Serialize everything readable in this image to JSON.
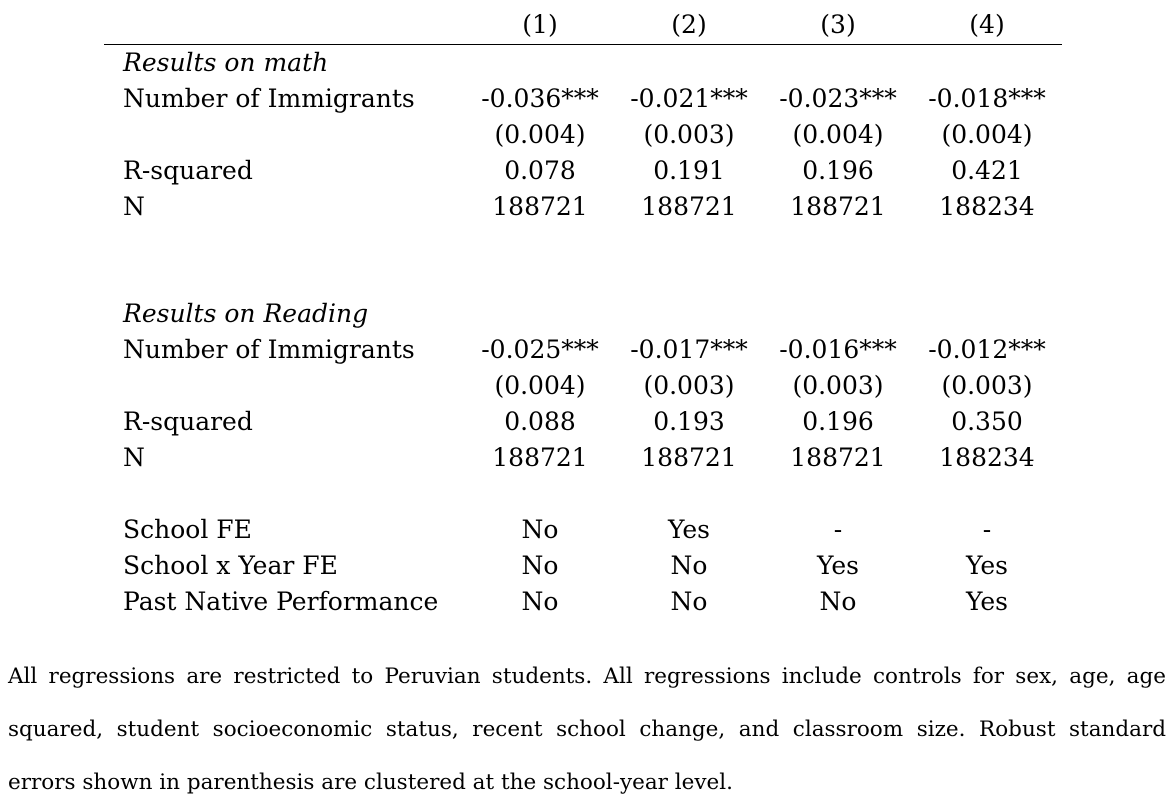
{
  "columns": [
    "(1)",
    "(2)",
    "(3)",
    "(4)"
  ],
  "math": {
    "section_label": "Results on math",
    "rows": [
      {
        "label": "Number of Immigrants",
        "values": [
          "-0.036***",
          "-0.021***",
          "-0.023***",
          "-0.018***"
        ]
      },
      {
        "label": "",
        "values": [
          "(0.004)",
          "(0.003)",
          "(0.004)",
          "(0.004)"
        ]
      },
      {
        "label": "R-squared",
        "values": [
          "0.078",
          "0.191",
          "0.196",
          "0.421"
        ]
      },
      {
        "label": "N",
        "values": [
          "188721",
          "188721",
          "188721",
          "188234"
        ]
      }
    ]
  },
  "reading": {
    "section_label": "Results on Reading",
    "rows": [
      {
        "label": "Number of Immigrants",
        "values": [
          "-0.025***",
          "-0.017***",
          "-0.016***",
          "-0.012***"
        ]
      },
      {
        "label": "",
        "values": [
          "(0.004)",
          "(0.003)",
          "(0.003)",
          "(0.003)"
        ]
      },
      {
        "label": "R-squared",
        "values": [
          "0.088",
          "0.193",
          "0.196",
          "0.350"
        ]
      },
      {
        "label": "N",
        "values": [
          "188721",
          "188721",
          "188721",
          "188234"
        ]
      }
    ]
  },
  "controls": [
    {
      "label": "School FE",
      "values": [
        "No",
        "Yes",
        "-",
        "-"
      ]
    },
    {
      "label": "School x Year FE",
      "values": [
        "No",
        "No",
        "Yes",
        "Yes"
      ]
    },
    {
      "label": "Past Native Performance",
      "values": [
        "No",
        "No",
        "No",
        "Yes"
      ]
    }
  ],
  "footnote": "All regressions are restricted to Peruvian students.  All regressions include controls for sex, age, age squared, student socioeconomic status, recent school change, and classroom size.  Robust standard errors shown in parenthesis are clustered at the school-year level."
}
